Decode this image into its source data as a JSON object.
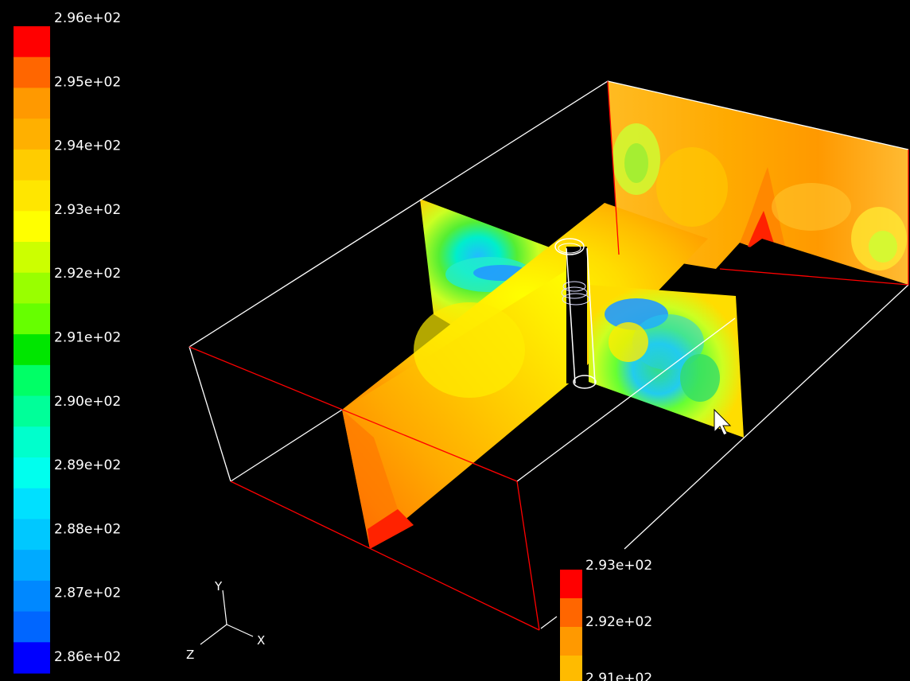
{
  "viewport": {
    "background": "#000000",
    "outline_color_white": "#ffffff",
    "outline_color_red": "#ff0000"
  },
  "main_colorbar": {
    "labels": [
      "2.96e+02",
      "2.95e+02",
      "2.94e+02",
      "2.93e+02",
      "2.92e+02",
      "2.91e+02",
      "2.90e+02",
      "2.89e+02",
      "2.88e+02",
      "2.87e+02",
      "2.86e+02"
    ],
    "bands": [
      "#ff0000",
      "#ff6600",
      "#ff9900",
      "#ffb000",
      "#ffcc00",
      "#ffe600",
      "#ffff00",
      "#ccff00",
      "#99ff00",
      "#66ff00",
      "#00e600",
      "#00ff66",
      "#00ff99",
      "#00ffcc",
      "#00ffee",
      "#00e0ff",
      "#00c8ff",
      "#00aaff",
      "#0088ff",
      "#0066ff",
      "#0000ff"
    ]
  },
  "secondary_colorbar": {
    "labels": [
      "2.93e+02",
      "2.92e+02",
      "2.91e+02"
    ],
    "bands": [
      "#ff0000",
      "#ff6600",
      "#ff9900",
      "#ffbb00"
    ]
  },
  "axis_triad": {
    "x": "X",
    "y": "Y",
    "z": "Z"
  },
  "plane_colors": {
    "orange": "#ffaa00",
    "light_orange": "#ffbb22",
    "yellow": "#ffee00",
    "yellow_green": "#ccff33",
    "green": "#33ee33",
    "cyan": "#00ddee",
    "blue": "#2299ff",
    "red": "#ff2200"
  }
}
